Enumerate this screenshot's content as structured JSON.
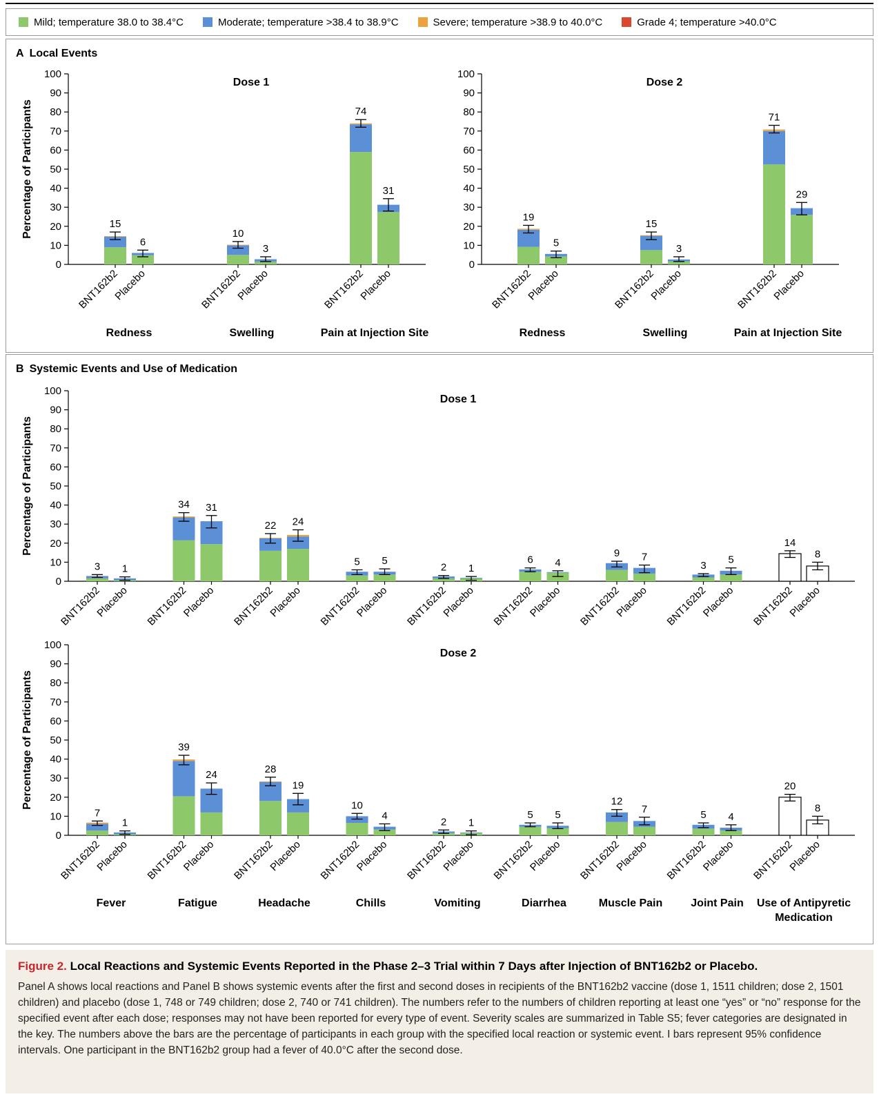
{
  "legend": [
    {
      "label": "Mild; temperature 38.0 to 38.4°C",
      "color": "#8dc86a"
    },
    {
      "label": "Moderate; temperature >38.4 to 38.9°C",
      "color": "#5b8fd6"
    },
    {
      "label": "Severe; temperature >38.9 to 40.0°C",
      "color": "#eba33d"
    },
    {
      "label": "Grade 4; temperature >40.0°C",
      "color": "#d9492f"
    }
  ],
  "panel_a": {
    "letter": "A",
    "title": "Local Events"
  },
  "panel_b": {
    "letter": "B",
    "title": "Systemic Events and Use of Medication"
  },
  "caption": {
    "label": "Figure 2.",
    "title": "Local Reactions and Systemic Events Reported in the Phase 2–3 Trial within 7 Days after Injection of BNT162b2 or Placebo.",
    "body": "Panel A shows local reactions and Panel B shows systemic events after the first and second doses in recipients of the BNT162b2 vaccine (dose 1, 1511 children; dose 2, 1501 children) and placebo (dose 1, 748 or 749 children; dose 2, 740 or 741 children). The numbers refer to the numbers of children reporting at least one “yes” or “no” response for the specified event after each dose; responses may not have been reported for every type of event. Severity scales are summarized in Table S5; fever categories are designated in the key. The numbers above the bars are the percentage of participants in each group with the specified local reaction or systemic event. I bars represent 95% confidence intervals. One participant in the BNT162b2 group had a fever of 40.0°C after the second dose."
  },
  "chart_data": [
    {
      "type": "bar",
      "stacked": true,
      "title": "Dose 1",
      "ylabel": "Percentage of Participants",
      "ylim": [
        0,
        100
      ],
      "yticks": [
        0,
        10,
        20,
        30,
        40,
        50,
        60,
        70,
        80,
        90,
        100
      ],
      "groups": [
        {
          "name": "Redness",
          "bars": [
            {
              "label": "BNT162b2",
              "total": 15,
              "segments": [
                9.0,
                5.5,
                0.3,
                0
              ],
              "ci": [
                13,
                17
              ]
            },
            {
              "label": "Placebo",
              "total": 6,
              "segments": [
                4.8,
                1.2,
                0,
                0
              ],
              "ci": [
                4,
                7.5
              ]
            }
          ]
        },
        {
          "name": "Swelling",
          "bars": [
            {
              "label": "BNT162b2",
              "total": 10,
              "segments": [
                5.0,
                5.0,
                0.3,
                0
              ],
              "ci": [
                8.5,
                12
              ]
            },
            {
              "label": "Placebo",
              "total": 3,
              "segments": [
                1.5,
                1.2,
                0,
                0
              ],
              "ci": [
                1.5,
                4
              ]
            }
          ]
        },
        {
          "name": "Pain at Injection Site",
          "bars": [
            {
              "label": "BNT162b2",
              "total": 74,
              "segments": [
                59,
                14.5,
                0.5,
                0
              ],
              "ci": [
                72,
                76
              ]
            },
            {
              "label": "Placebo",
              "total": 31,
              "segments": [
                27.5,
                3.8,
                0,
                0
              ],
              "ci": [
                28,
                34.5
              ]
            }
          ]
        }
      ]
    },
    {
      "type": "bar",
      "stacked": true,
      "title": "Dose 2",
      "ylim": [
        0,
        100
      ],
      "yticks": [
        0,
        10,
        20,
        30,
        40,
        50,
        60,
        70,
        80,
        90,
        100
      ],
      "groups": [
        {
          "name": "Redness",
          "bars": [
            {
              "label": "BNT162b2",
              "total": 19,
              "segments": [
                9.2,
                9.0,
                0.5,
                0
              ],
              "ci": [
                16.5,
                20.5
              ]
            },
            {
              "label": "Placebo",
              "total": 5,
              "segments": [
                4.2,
                1.3,
                0,
                0
              ],
              "ci": [
                3.5,
                7
              ]
            }
          ]
        },
        {
          "name": "Swelling",
          "bars": [
            {
              "label": "BNT162b2",
              "total": 15,
              "segments": [
                7.5,
                7.5,
                0.3,
                0
              ],
              "ci": [
                13,
                17
              ]
            },
            {
              "label": "Placebo",
              "total": 3,
              "segments": [
                1.6,
                1.0,
                0,
                0
              ],
              "ci": [
                1.5,
                4
              ]
            }
          ]
        },
        {
          "name": "Pain at Injection Site",
          "bars": [
            {
              "label": "BNT162b2",
              "total": 71,
              "segments": [
                52.5,
                17.5,
                0.8,
                0
              ],
              "ci": [
                69,
                73
              ]
            },
            {
              "label": "Placebo",
              "total": 29,
              "segments": [
                26,
                3.5,
                0,
                0
              ],
              "ci": [
                26,
                32.5
              ]
            }
          ]
        }
      ]
    },
    {
      "type": "bar",
      "stacked": true,
      "title": "Dose 1",
      "ylabel": "Percentage of Participants",
      "ylim": [
        0,
        100
      ],
      "yticks": [
        0,
        10,
        20,
        30,
        40,
        50,
        60,
        70,
        80,
        90,
        100
      ],
      "groups": [
        {
          "name": "Fever",
          "bars": [
            {
              "label": "BNT162b2",
              "total": 3,
              "segments": [
                1.5,
                1.2,
                0.1,
                0
              ],
              "ci": [
                2,
                3.5
              ]
            },
            {
              "label": "Placebo",
              "total": 1,
              "segments": [
                0.5,
                1.0,
                0,
                0
              ],
              "ci": [
                0.5,
                2.3
              ]
            }
          ]
        },
        {
          "name": "Fatigue",
          "bars": [
            {
              "label": "BNT162b2",
              "total": 34,
              "segments": [
                21.5,
                12.0,
                0.5,
                0
              ],
              "ci": [
                31.5,
                36
              ]
            },
            {
              "label": "Placebo",
              "total": 31,
              "segments": [
                19.5,
                12.0,
                0,
                0
              ],
              "ci": [
                28,
                34.5
              ]
            }
          ]
        },
        {
          "name": "Headache",
          "bars": [
            {
              "label": "BNT162b2",
              "total": 22,
              "segments": [
                16.0,
                6.5,
                0.3,
                0
              ],
              "ci": [
                20,
                25
              ]
            },
            {
              "label": "Placebo",
              "total": 24,
              "segments": [
                17.0,
                6.5,
                0.8,
                0
              ],
              "ci": [
                21,
                27
              ]
            }
          ]
        },
        {
          "name": "Chills",
          "bars": [
            {
              "label": "BNT162b2",
              "total": 5,
              "segments": [
                3.0,
                2.0,
                0,
                0
              ],
              "ci": [
                3.5,
                6
              ]
            },
            {
              "label": "Placebo",
              "total": 5,
              "segments": [
                3.5,
                1.5,
                0,
                0
              ],
              "ci": [
                3.5,
                6.5
              ]
            }
          ]
        },
        {
          "name": "Vomiting",
          "bars": [
            {
              "label": "BNT162b2",
              "total": 2,
              "segments": [
                1.5,
                1.0,
                0,
                0
              ],
              "ci": [
                1.5,
                3
              ]
            },
            {
              "label": "Placebo",
              "total": 1,
              "segments": [
                1.5,
                0.3,
                0,
                0
              ],
              "ci": [
                0.5,
                2.5
              ]
            }
          ]
        },
        {
          "name": "Diarrhea",
          "bars": [
            {
              "label": "BNT162b2",
              "total": 6,
              "segments": [
                5.0,
                1.2,
                0,
                0
              ],
              "ci": [
                5,
                7
              ]
            },
            {
              "label": "Placebo",
              "total": 4,
              "segments": [
                4.5,
                0.3,
                0,
                0
              ],
              "ci": [
                2.5,
                5.5
              ]
            }
          ]
        },
        {
          "name": "Muscle Pain",
          "bars": [
            {
              "label": "BNT162b2",
              "total": 9,
              "segments": [
                6.0,
                3.5,
                0,
                0
              ],
              "ci": [
                7.5,
                10.5
              ]
            },
            {
              "label": "Placebo",
              "total": 7,
              "segments": [
                4.0,
                3.0,
                0,
                0
              ],
              "ci": [
                4.5,
                8.5
              ]
            }
          ]
        },
        {
          "name": "Joint Pain",
          "bars": [
            {
              "label": "BNT162b2",
              "total": 3,
              "segments": [
                2.0,
                1.5,
                0,
                0
              ],
              "ci": [
                2.5,
                4
              ]
            },
            {
              "label": "Placebo",
              "total": 5,
              "segments": [
                3.5,
                2.0,
                0,
                0
              ],
              "ci": [
                3.5,
                7
              ]
            }
          ]
        },
        {
          "name": "Use of Antipyretic Medication",
          "hollow": true,
          "bars": [
            {
              "label": "BNT162b2",
              "total": 14,
              "segments": [
                14.5,
                0,
                0,
                0
              ],
              "ci": [
                12.5,
                16
              ]
            },
            {
              "label": "Placebo",
              "total": 8,
              "segments": [
                8.0,
                0,
                0,
                0
              ],
              "ci": [
                6,
                10
              ]
            }
          ]
        }
      ]
    },
    {
      "type": "bar",
      "stacked": true,
      "title": "Dose 2",
      "ylabel": "Percentage of Participants",
      "ylim": [
        0,
        100
      ],
      "yticks": [
        0,
        10,
        20,
        30,
        40,
        50,
        60,
        70,
        80,
        90,
        100
      ],
      "groups": [
        {
          "name": "Fever",
          "bars": [
            {
              "label": "BNT162b2",
              "total": 7,
              "segments": [
                2.5,
                3.5,
                0.5,
                0.1
              ],
              "ci": [
                5.2,
                7.5
              ]
            },
            {
              "label": "Placebo",
              "total": 1,
              "segments": [
                0.5,
                1.0,
                0,
                0
              ],
              "ci": [
                0.5,
                2.3
              ]
            }
          ]
        },
        {
          "name": "Fatigue",
          "bars": [
            {
              "label": "BNT162b2",
              "total": 39,
              "segments": [
                20.5,
                18.5,
                0.8,
                0
              ],
              "ci": [
                37,
                42
              ]
            },
            {
              "label": "Placebo",
              "total": 24,
              "segments": [
                12.0,
                12.5,
                0,
                0
              ],
              "ci": [
                21.5,
                27.5
              ]
            }
          ]
        },
        {
          "name": "Headache",
          "bars": [
            {
              "label": "BNT162b2",
              "total": 28,
              "segments": [
                18.0,
                10.0,
                0.3,
                0
              ],
              "ci": [
                26,
                30.5
              ]
            },
            {
              "label": "Placebo",
              "total": 19,
              "segments": [
                12.0,
                7.0,
                0,
                0
              ],
              "ci": [
                16,
                22
              ]
            }
          ]
        },
        {
          "name": "Chills",
          "bars": [
            {
              "label": "BNT162b2",
              "total": 10,
              "segments": [
                6.5,
                3.5,
                0,
                0
              ],
              "ci": [
                8.5,
                11.5
              ]
            },
            {
              "label": "Placebo",
              "total": 4,
              "segments": [
                3.0,
                1.5,
                0,
                0
              ],
              "ci": [
                2.5,
                6
              ]
            }
          ]
        },
        {
          "name": "Vomiting",
          "bars": [
            {
              "label": "BNT162b2",
              "total": 2,
              "segments": [
                1.2,
                0.8,
                0,
                0
              ],
              "ci": [
                1,
                2.8
              ]
            },
            {
              "label": "Placebo",
              "total": 1,
              "segments": [
                1.2,
                0.3,
                0,
                0
              ],
              "ci": [
                0.3,
                2.3
              ]
            }
          ]
        },
        {
          "name": "Diarrhea",
          "bars": [
            {
              "label": "BNT162b2",
              "total": 5,
              "segments": [
                4.5,
                1.0,
                0,
                0
              ],
              "ci": [
                4.5,
                6.5
              ]
            },
            {
              "label": "Placebo",
              "total": 5,
              "segments": [
                3.8,
                1.2,
                0,
                0
              ],
              "ci": [
                3.5,
                6.5
              ]
            }
          ]
        },
        {
          "name": "Muscle Pain",
          "bars": [
            {
              "label": "BNT162b2",
              "total": 12,
              "segments": [
                7.0,
                5.0,
                0,
                0
              ],
              "ci": [
                10,
                13.5
              ]
            },
            {
              "label": "Placebo",
              "total": 7,
              "segments": [
                4.5,
                3.0,
                0,
                0
              ],
              "ci": [
                5.5,
                9.5
              ]
            }
          ]
        },
        {
          "name": "Joint Pain",
          "bars": [
            {
              "label": "BNT162b2",
              "total": 5,
              "segments": [
                3.5,
                2.0,
                0,
                0
              ],
              "ci": [
                4,
                6.5
              ]
            },
            {
              "label": "Placebo",
              "total": 4,
              "segments": [
                2.5,
                1.5,
                0,
                0
              ],
              "ci": [
                2.5,
                5.5
              ]
            }
          ]
        },
        {
          "name": "Use of Antipyretic Medication",
          "hollow": true,
          "bars": [
            {
              "label": "BNT162b2",
              "total": 20,
              "segments": [
                20.0,
                0,
                0,
                0
              ],
              "ci": [
                18,
                21.5
              ]
            },
            {
              "label": "Placebo",
              "total": 8,
              "segments": [
                8.0,
                0,
                0,
                0
              ],
              "ci": [
                6,
                10
              ]
            }
          ]
        }
      ]
    }
  ]
}
